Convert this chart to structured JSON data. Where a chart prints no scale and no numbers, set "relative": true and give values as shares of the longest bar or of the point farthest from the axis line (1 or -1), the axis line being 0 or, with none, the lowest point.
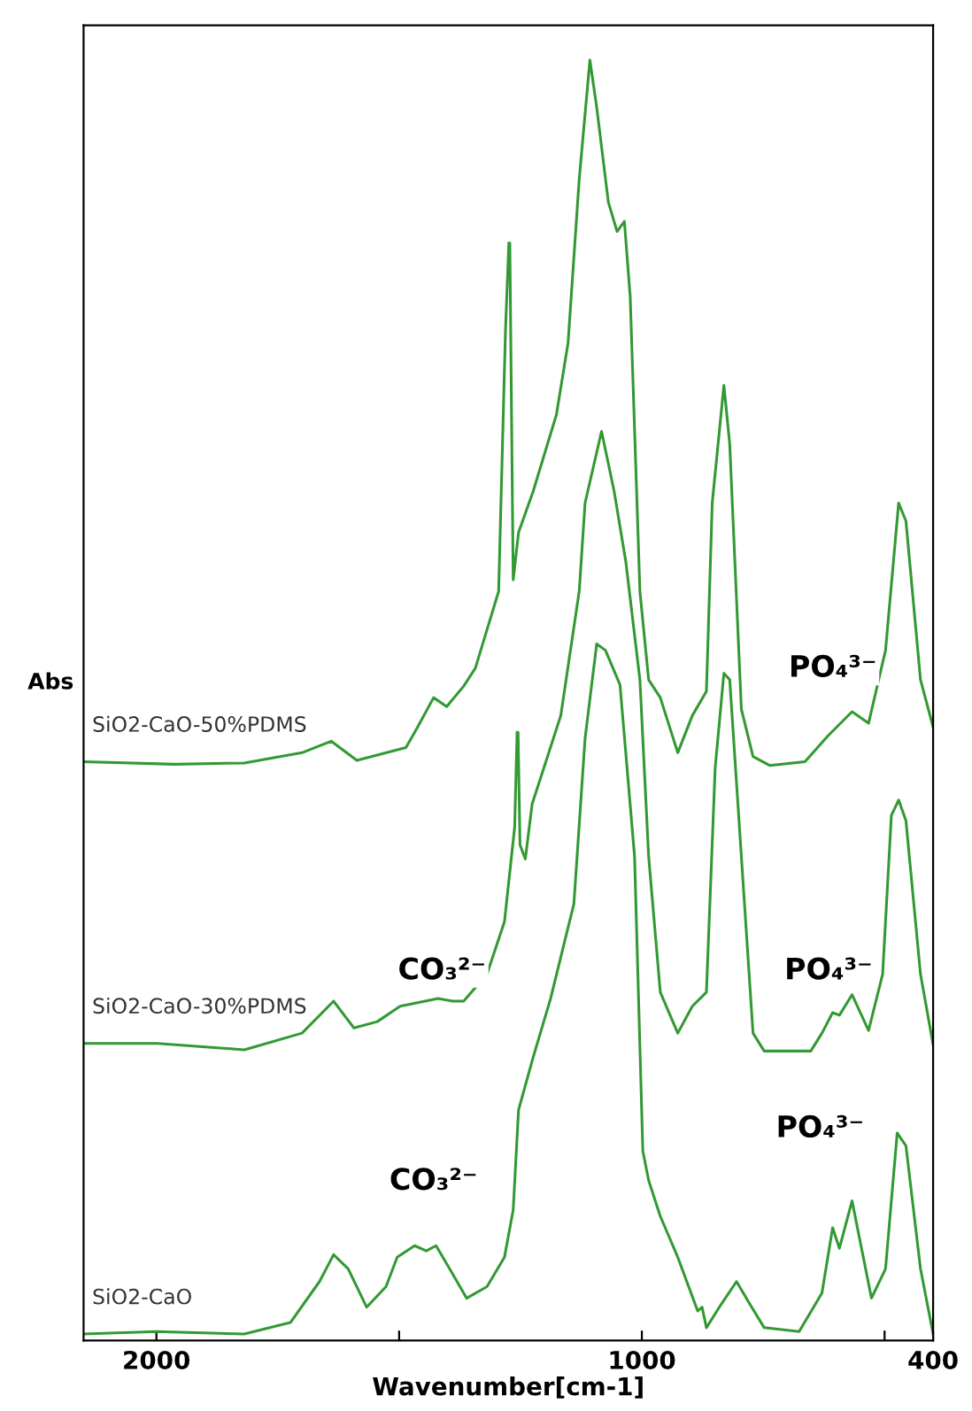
{
  "chart_data": {
    "type": "line",
    "relative": true,
    "xlabel": "Wavenumber[cm-1]",
    "ylabel": "Abs",
    "xlim": [
      2150,
      400
    ],
    "xticks": [
      2000,
      {
        "value": 1500,
        "label": null
      },
      1000,
      {
        "value": 500,
        "label": null
      },
      400
    ],
    "tick_labels": "x",
    "grid": false,
    "legend": false,
    "marker": "none",
    "line_style": "solid",
    "series": [
      {
        "name": "SiO2-CaO-50%PDMS",
        "color": "#339933",
        "x": [
          2150,
          1962,
          1819,
          1700,
          1640,
          1587,
          1486,
          1462,
          1429,
          1402,
          1367,
          1343,
          1295,
          1281,
          1274,
          1272,
          1265,
          1254,
          1224,
          1176,
          1152,
          1129,
          1107,
          1093,
          1069,
          1051,
          1036,
          1024,
          1004,
          986,
          962,
          926,
          896,
          867,
          855,
          831,
          819,
          795,
          771,
          736,
          664,
          617,
          567,
          533,
          498,
          471,
          456,
          426,
          400
        ],
        "values": [
          0.452,
          0.45,
          0.451,
          0.459,
          0.468,
          0.453,
          0.463,
          0.479,
          0.502,
          0.495,
          0.511,
          0.525,
          0.585,
          0.788,
          0.857,
          0.857,
          0.594,
          0.631,
          0.663,
          0.723,
          0.779,
          0.907,
          1.0,
          0.963,
          0.889,
          0.866,
          0.874,
          0.815,
          0.585,
          0.516,
          0.502,
          0.459,
          0.488,
          0.507,
          0.654,
          0.746,
          0.7,
          0.493,
          0.456,
          0.449,
          0.452,
          0.472,
          0.491,
          0.482,
          0.539,
          0.654,
          0.64,
          0.516,
          0.479
        ]
      },
      {
        "name": "SiO2-CaO-30%PDMS",
        "color": "#339933",
        "x": [
          2150,
          1998,
          1819,
          1700,
          1635,
          1593,
          1545,
          1498,
          1420,
          1390,
          1367,
          1319,
          1283,
          1262,
          1257,
          1255,
          1251,
          1240,
          1226,
          1202,
          1167,
          1129,
          1117,
          1083,
          1057,
          1033,
          1004,
          986,
          962,
          926,
          896,
          867,
          849,
          831,
          819,
          795,
          771,
          748,
          652,
          629,
          607,
          593,
          567,
          533,
          504,
          486,
          471,
          456,
          426,
          400
        ],
        "values": [
          0.232,
          0.232,
          0.227,
          0.24,
          0.265,
          0.244,
          0.249,
          0.261,
          0.267,
          0.265,
          0.265,
          0.286,
          0.327,
          0.401,
          0.475,
          0.475,
          0.387,
          0.376,
          0.419,
          0.447,
          0.488,
          0.585,
          0.654,
          0.71,
          0.663,
          0.608,
          0.516,
          0.378,
          0.272,
          0.24,
          0.261,
          0.272,
          0.447,
          0.521,
          0.516,
          0.378,
          0.24,
          0.226,
          0.226,
          0.24,
          0.256,
          0.254,
          0.27,
          0.242,
          0.286,
          0.41,
          0.422,
          0.406,
          0.286,
          0.231
        ]
      },
      {
        "name": "SiO2-CaO",
        "color": "#339933",
        "x": [
          2150,
          2000,
          1819,
          1724,
          1664,
          1635,
          1605,
          1567,
          1527,
          1504,
          1468,
          1444,
          1424,
          1396,
          1361,
          1319,
          1283,
          1265,
          1254,
          1224,
          1188,
          1140,
          1117,
          1093,
          1075,
          1045,
          1015,
          998,
          986,
          962,
          926,
          885,
          876,
          867,
          837,
          805,
          777,
          748,
          676,
          629,
          607,
          593,
          567,
          527,
          498,
          474,
          456,
          426,
          400
        ],
        "values": [
          0.005,
          0.007,
          0.005,
          0.014,
          0.046,
          0.067,
          0.056,
          0.026,
          0.042,
          0.065,
          0.074,
          0.07,
          0.074,
          0.056,
          0.033,
          0.042,
          0.065,
          0.102,
          0.18,
          0.221,
          0.267,
          0.341,
          0.47,
          0.544,
          0.539,
          0.512,
          0.378,
          0.148,
          0.125,
          0.097,
          0.065,
          0.023,
          0.026,
          0.01,
          0.028,
          0.046,
          0.028,
          0.01,
          0.007,
          0.037,
          0.088,
          0.072,
          0.109,
          0.033,
          0.056,
          0.162,
          0.152,
          0.056,
          0.005
        ]
      }
    ],
    "annotations": [
      "PO₄³⁻",
      "CO₃²⁻",
      "PO₄³⁻",
      "CO₃²⁻",
      "PO₄³⁻"
    ]
  }
}
